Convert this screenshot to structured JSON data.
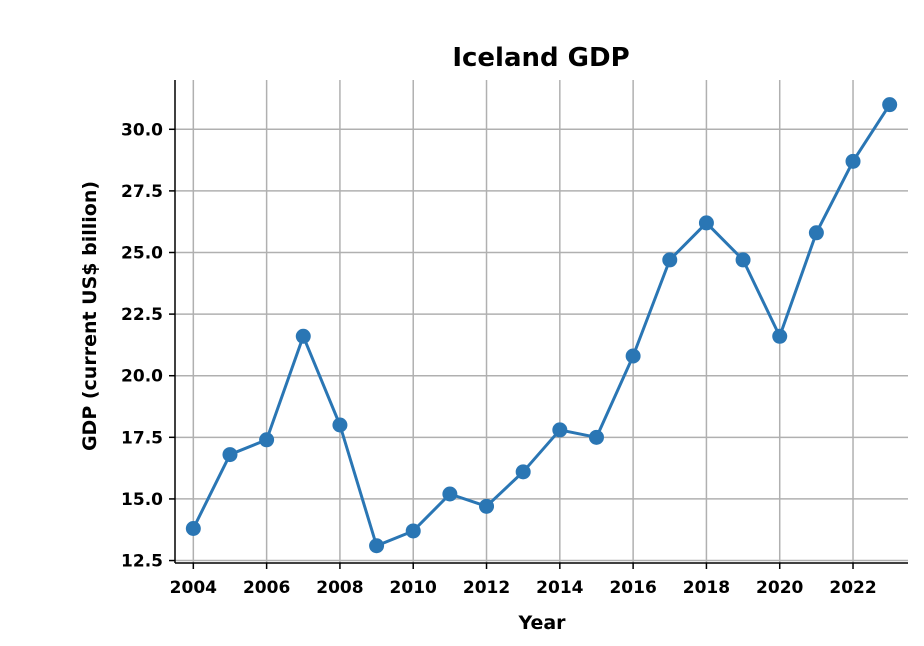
{
  "chart_data": {
    "type": "line",
    "title": "Iceland GDP",
    "xlabel": "Year",
    "ylabel": "GDP (current US$ billion)",
    "x": [
      2004,
      2005,
      2006,
      2007,
      2008,
      2009,
      2010,
      2011,
      2012,
      2013,
      2014,
      2015,
      2016,
      2017,
      2018,
      2019,
      2020,
      2021,
      2022,
      2023
    ],
    "series": [
      {
        "values": [
          13.8,
          16.8,
          17.4,
          21.6,
          18.0,
          13.1,
          13.7,
          15.2,
          14.7,
          16.1,
          17.8,
          17.5,
          20.8,
          24.7,
          26.2,
          24.7,
          21.6,
          25.8,
          28.7,
          31.0
        ],
        "color": "#2a76b4"
      }
    ],
    "xticks": [
      "2004",
      "2006",
      "2008",
      "2010",
      "2012",
      "2014",
      "2016",
      "2018",
      "2020",
      "2022"
    ],
    "yticks": [
      "12.5",
      "15.0",
      "17.5",
      "20.0",
      "22.5",
      "25.0",
      "27.5",
      "30.0"
    ],
    "xlim": [
      2003.5,
      2023.5
    ],
    "ylim": [
      12.4,
      32.0
    ],
    "grid": true,
    "legend": "none"
  }
}
